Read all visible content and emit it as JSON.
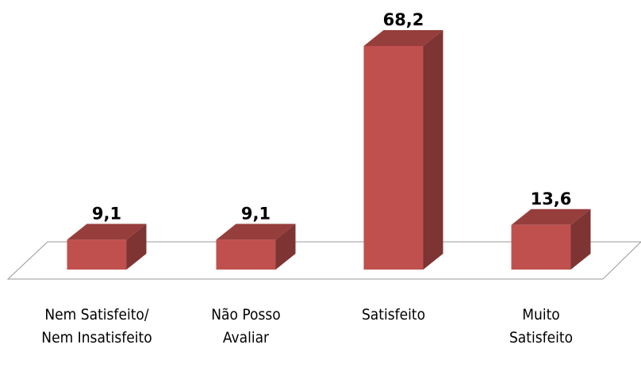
{
  "chart_data": {
    "type": "bar3d",
    "categories": [
      "Nem Satisfeito/ Nem Insatisfeito",
      "Não Posso Avaliar",
      "Satisfeito",
      "Muito Satisfeito"
    ],
    "values": [
      9.1,
      9.1,
      68.2,
      13.6
    ],
    "value_labels": [
      "9,1",
      "9,1",
      "68,2",
      "13,6"
    ],
    "color": "#c0504d"
  }
}
